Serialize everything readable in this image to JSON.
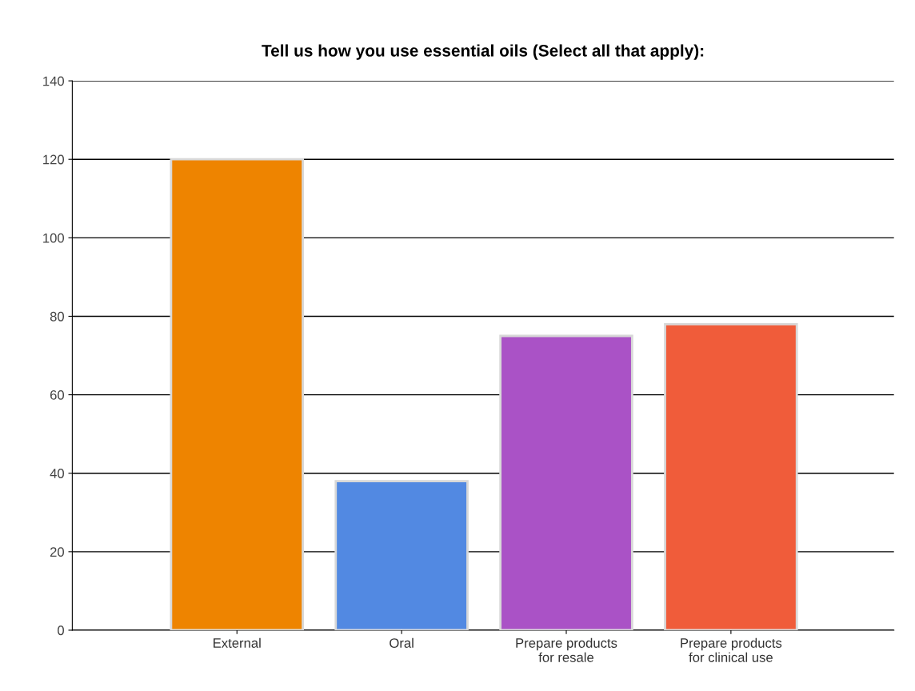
{
  "chart_data": {
    "type": "bar",
    "title": "Tell us how you use essential oils (Select all that apply):",
    "categories": [
      "External",
      "Oral",
      "Prepare products\nfor resale",
      "Prepare products\nfor clinical use"
    ],
    "values": [
      120,
      38,
      75,
      78
    ],
    "colors": [
      "#ee8400",
      "#5289e2",
      "#aa52c6",
      "#f05c3a"
    ],
    "ylim": [
      0,
      140
    ],
    "yticks": [
      0,
      20,
      40,
      60,
      80,
      100,
      120,
      140
    ],
    "grid": "y"
  }
}
